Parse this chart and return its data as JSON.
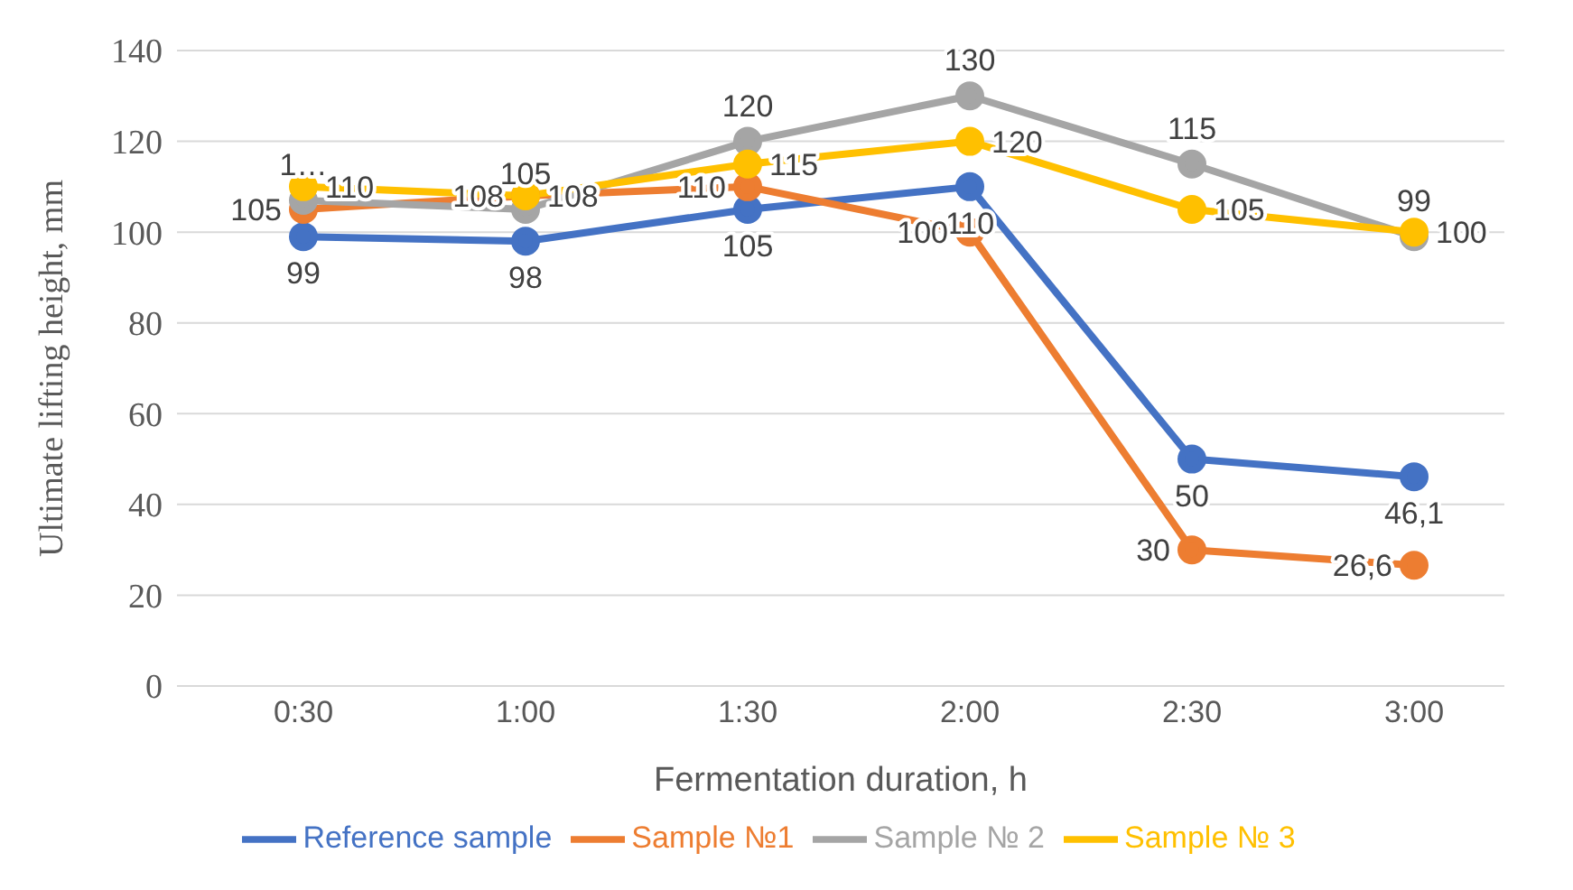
{
  "chart_data": {
    "type": "line",
    "xlabel": "Fermentation duration, h",
    "ylabel": "Ultimate lifting height, mm",
    "categories": [
      "0:30",
      "1:00",
      "1:30",
      "2:00",
      "2:30",
      "3:00"
    ],
    "series": [
      {
        "name": "Reference sample",
        "color": "#4472c4",
        "values": [
          99,
          98,
          105,
          110,
          50,
          46.1
        ],
        "value_labels": [
          "99",
          "98",
          "105",
          "110",
          "50",
          "46,1"
        ]
      },
      {
        "name": "Sample №1",
        "color": "#ed7d31",
        "values": [
          105,
          108,
          110,
          100,
          30,
          26.6
        ],
        "value_labels": [
          "105",
          "108",
          "110",
          "100",
          "30",
          "26,6"
        ]
      },
      {
        "name": "Sample № 2",
        "color": "#a5a5a5",
        "values": [
          107,
          105,
          120,
          130,
          115,
          99
        ],
        "value_labels": [
          "1…",
          "105",
          "120",
          "130",
          "115",
          "99"
        ]
      },
      {
        "name": "Sample № 3",
        "color": "#ffc000",
        "values": [
          110,
          108,
          115,
          120,
          105,
          100
        ],
        "value_labels": [
          "110",
          "108",
          "115",
          "120",
          "105",
          "100"
        ]
      }
    ],
    "ylim": [
      0,
      140
    ],
    "yticks": [
      0,
      20,
      40,
      60,
      80,
      100,
      120,
      140
    ],
    "grid": "y",
    "legend": "bottom",
    "marker": "circle",
    "line_style": "solid"
  }
}
